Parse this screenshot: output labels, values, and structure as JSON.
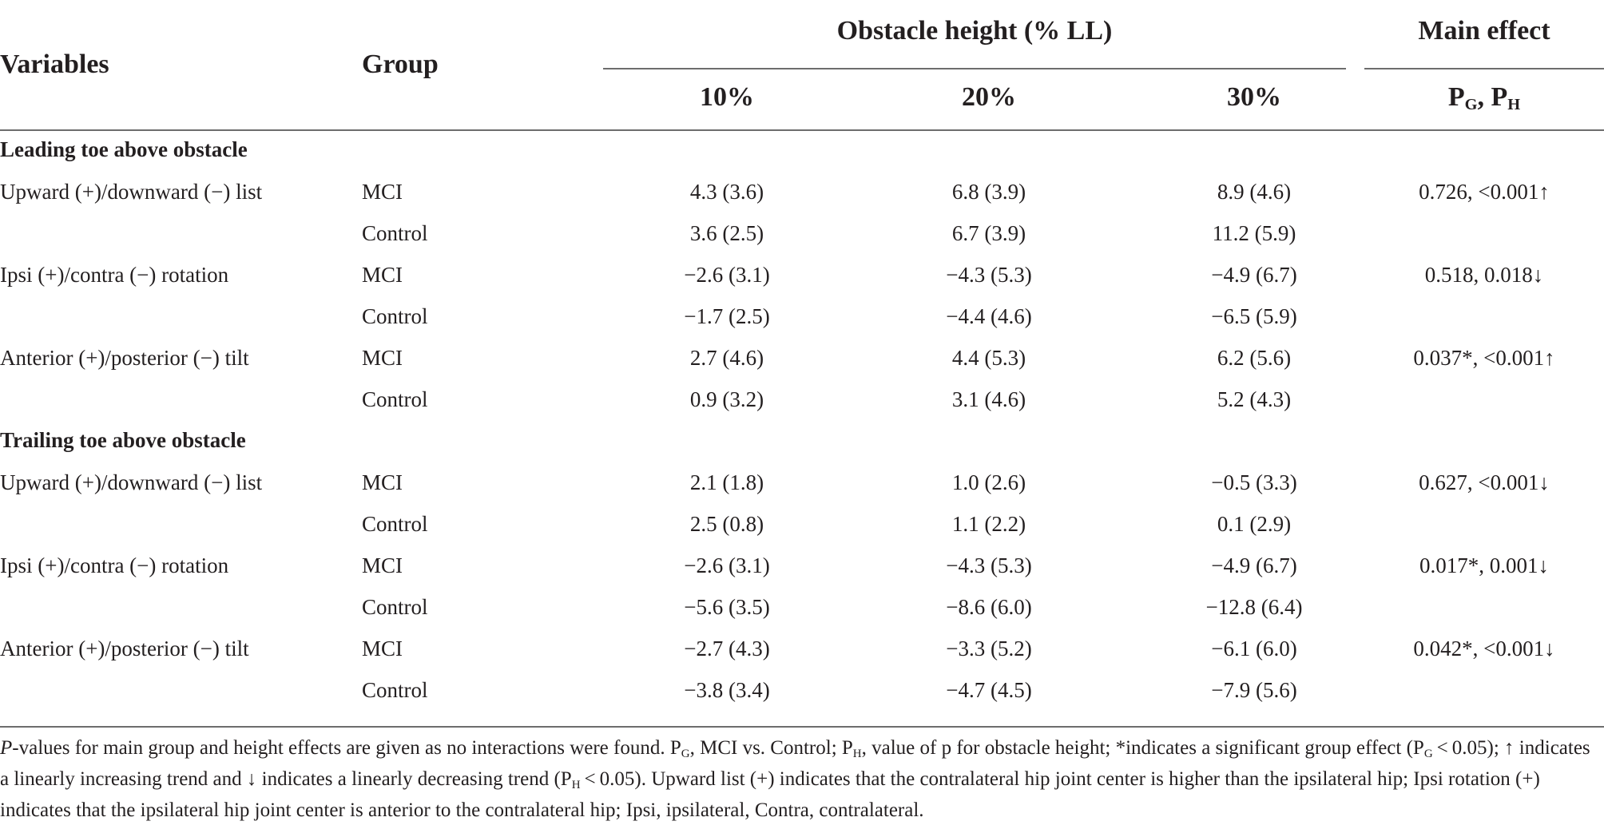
{
  "header": {
    "variables": "Variables",
    "group": "Group",
    "obstacle_height": "Obstacle height (% LL)",
    "main_effect": "Main effect",
    "cols": [
      "10%",
      "20%",
      "30%"
    ],
    "p_main": "P",
    "p_g_sub": "G",
    "p_sep": ", P",
    "p_h_sub": "H"
  },
  "sections": [
    {
      "title": "Leading toe above obstacle",
      "rows": [
        {
          "variable": "Upward (+)/downward (−) list",
          "group": "MCI",
          "v10": "4.3 (3.6)",
          "v20": "6.8 (3.9)",
          "v30": "8.9 (4.6)",
          "effect": "0.726, <0.001↑"
        },
        {
          "variable": "",
          "group": "Control",
          "v10": "3.6 (2.5)",
          "v20": "6.7 (3.9)",
          "v30": "11.2 (5.9)",
          "effect": ""
        },
        {
          "variable": "Ipsi (+)/contra (−) rotation",
          "group": "MCI",
          "v10": "−2.6 (3.1)",
          "v20": "−4.3 (5.3)",
          "v30": "−4.9 (6.7)",
          "effect": "0.518, 0.018↓"
        },
        {
          "variable": "",
          "group": "Control",
          "v10": "−1.7 (2.5)",
          "v20": "−4.4 (4.6)",
          "v30": "−6.5 (5.9)",
          "effect": ""
        },
        {
          "variable": "Anterior (+)/posterior (−) tilt",
          "group": "MCI",
          "v10": "2.7 (4.6)",
          "v20": "4.4 (5.3)",
          "v30": "6.2 (5.6)",
          "effect": "0.037*, <0.001↑"
        },
        {
          "variable": "",
          "group": "Control",
          "v10": "0.9 (3.2)",
          "v20": "3.1 (4.6)",
          "v30": "5.2 (4.3)",
          "effect": ""
        }
      ]
    },
    {
      "title": "Trailing toe above obstacle",
      "rows": [
        {
          "variable": "Upward (+)/downward (−) list",
          "group": "MCI",
          "v10": "2.1 (1.8)",
          "v20": "1.0 (2.6)",
          "v30": "−0.5 (3.3)",
          "effect": "0.627, <0.001↓"
        },
        {
          "variable": "",
          "group": "Control",
          "v10": "2.5 (0.8)",
          "v20": "1.1 (2.2)",
          "v30": "0.1 (2.9)",
          "effect": ""
        },
        {
          "variable": "Ipsi (+)/contra (−) rotation",
          "group": "MCI",
          "v10": "−2.6 (3.1)",
          "v20": "−4.3 (5.3)",
          "v30": "−4.9 (6.7)",
          "effect": "0.017*, 0.001↓"
        },
        {
          "variable": "",
          "group": "Control",
          "v10": "−5.6 (3.5)",
          "v20": "−8.6 (6.0)",
          "v30": "−12.8 (6.4)",
          "effect": ""
        },
        {
          "variable": "Anterior (+)/posterior (−) tilt",
          "group": "MCI",
          "v10": "−2.7 (4.3)",
          "v20": "−3.3 (5.2)",
          "v30": "−6.1 (6.0)",
          "effect": "0.042*, <0.001↓"
        },
        {
          "variable": "",
          "group": "Control",
          "v10": "−3.8 (3.4)",
          "v20": "−4.7 (4.5)",
          "v30": "−7.9 (5.6)",
          "effect": ""
        }
      ]
    }
  ],
  "footnote": {
    "p_italic": "P",
    "t1": "-values for main group and height effects are given as no interactions were found. P",
    "s1": "G",
    "t2": ", MCI vs. Control; P",
    "s2": "H",
    "t3": ", value of p for obstacle height; *indicates a significant group effect (P",
    "s3": "G",
    "t4": " < 0.05); ↑ indicates a linearly increasing trend and ↓ indicates a linearly decreasing trend (P",
    "s4": "H",
    "t5": " < 0.05). Upward list (+) indicates that the contralateral hip joint center is higher than the ipsilateral hip; Ipsi rotation (+) indicates that the ipsilateral hip joint center is anterior to the contralateral hip; Ipsi, ipsilateral, Contra, contralateral."
  }
}
